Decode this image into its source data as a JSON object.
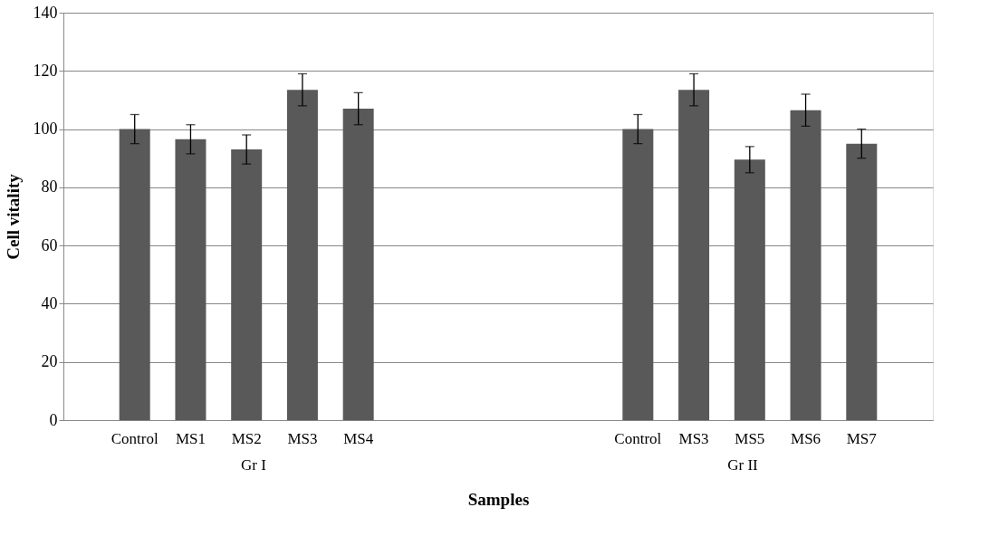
{
  "chart_data": {
    "type": "bar",
    "xlabel": "Samples",
    "ylabel": "Cell vitality",
    "categories": [
      null,
      "Control",
      "MS1",
      "MS2",
      "MS3",
      "MS4",
      null,
      null,
      null,
      null,
      "Control",
      "MS3",
      "MS5",
      "MS6",
      "MS7",
      null
    ],
    "values": [
      null,
      100,
      96.5,
      93,
      113.5,
      107,
      null,
      null,
      null,
      null,
      100,
      113.5,
      89.5,
      106.5,
      95,
      null
    ],
    "errors": [
      null,
      5,
      5,
      5,
      5.5,
      5.5,
      null,
      null,
      null,
      null,
      5,
      5.5,
      4.5,
      5.5,
      5,
      null
    ],
    "color": "#595959",
    "ylim": [
      0,
      140
    ],
    "yticks": [
      0,
      20,
      40,
      60,
      80,
      100,
      120,
      140
    ],
    "grid": "y",
    "annotations": [
      "Gr I",
      "Gr II"
    ]
  }
}
